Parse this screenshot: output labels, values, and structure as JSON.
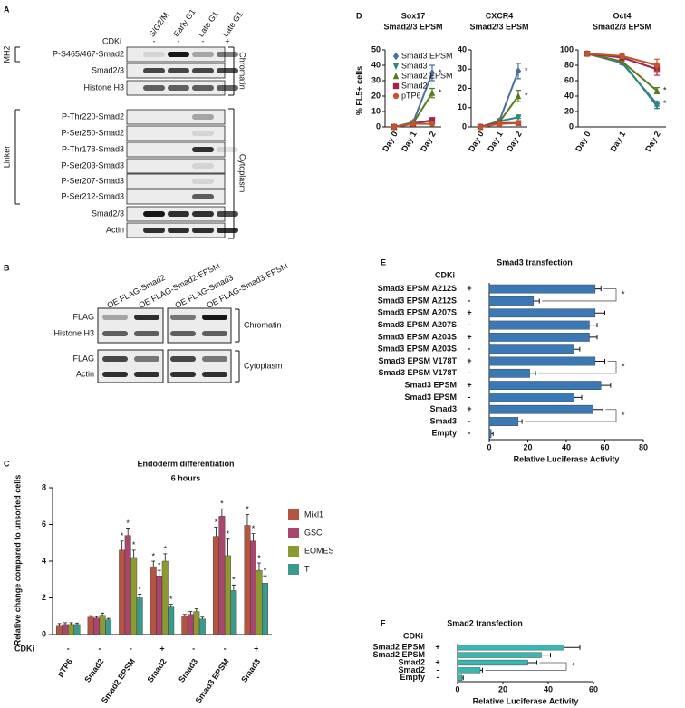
{
  "blot_a": {
    "panel": "A",
    "columns": [
      "S/G2/M",
      "Early G1",
      "Late G1",
      "Late G1"
    ],
    "cdki_label": "CDKi",
    "cdki": [
      "-",
      "-",
      "-",
      "+"
    ],
    "rows": [
      "P-S465/467-Smad2",
      "Smad2/3",
      "Histone H3",
      "P-Thr220-Smad2",
      "P-Ser250-Smad2",
      "P-Thr178-Smad3",
      "P-Ser203-Smad3",
      "P-Ser207-Smad3",
      "P-Ser212-Smad3",
      "Smad2/3",
      "Actin"
    ],
    "mh2_label": "MH2",
    "linker_label": "Linker",
    "chromatin_label": "Chromatin",
    "cytoplasm_label": "Cytoplasm"
  },
  "blot_b": {
    "panel": "B",
    "columns": [
      "OE FLAG-Smad2",
      "OE FLAG-Smad2-EPSM",
      "OE FLAG-Smad3",
      "OE FLAG-Smad3-EPSM"
    ],
    "rows": [
      "FLAG",
      "Histone H3",
      "FLAG",
      "Actin"
    ],
    "chromatin_label": "Chromatin",
    "cytoplasm_label": "Cytoplasm"
  },
  "chart_data": [
    {
      "panel": "C",
      "type": "grouped_bar",
      "title": "Endoderm differentiation",
      "subtitle": "6 hours",
      "ylabel": "Relative change compared to unsorted cells",
      "categories": [
        "pTP6",
        "Smad2",
        "Smad2 EPSM",
        "Smad2",
        "Smad3",
        "Smad3 EPSM",
        "Smad3"
      ],
      "cdki_label": "CDKi",
      "cdki": [
        "-",
        "-",
        "-",
        "+",
        "-",
        "-",
        "+"
      ],
      "ylim": [
        0,
        8
      ],
      "yticks": [
        0,
        2,
        4,
        6,
        8
      ],
      "significance_label": "*",
      "series": [
        {
          "name": "Mixl1",
          "color": "#b4553f",
          "values": [
            0.5,
            0.95,
            4.6,
            3.7,
            1.0,
            5.35,
            5.95
          ],
          "errors": [
            0.1,
            0.08,
            0.5,
            0.3,
            0.1,
            0.5,
            0.6
          ],
          "significant": [
            false,
            false,
            true,
            true,
            false,
            true,
            true
          ]
        },
        {
          "name": "GSC",
          "color": "#a8466f",
          "values": [
            0.55,
            0.9,
            5.4,
            3.2,
            1.1,
            6.45,
            5.1
          ],
          "errors": [
            0.1,
            0.08,
            0.4,
            0.3,
            0.15,
            0.4,
            0.4
          ],
          "significant": [
            false,
            false,
            true,
            true,
            false,
            true,
            true
          ]
        },
        {
          "name": "EOMES",
          "color": "#8c9a31",
          "values": [
            0.55,
            1.05,
            4.2,
            4.0,
            1.25,
            4.3,
            3.5
          ],
          "errors": [
            0.1,
            0.12,
            0.4,
            0.4,
            0.15,
            0.9,
            0.4
          ],
          "significant": [
            false,
            false,
            true,
            true,
            false,
            true,
            true
          ]
        },
        {
          "name": "T",
          "color": "#3b9a8c",
          "values": [
            0.55,
            0.8,
            2.0,
            1.5,
            0.85,
            2.4,
            2.8
          ],
          "errors": [
            0.08,
            0.08,
            0.2,
            0.15,
            0.1,
            0.3,
            0.4
          ],
          "significant": [
            false,
            false,
            true,
            true,
            false,
            true,
            true
          ]
        }
      ]
    },
    {
      "panel": "D",
      "type": "line",
      "title": "Sox17",
      "subtitle": "Smad2/3 EPSM",
      "ylabel": "% FL5+ cells",
      "legend": true,
      "significance_label": "*",
      "categories": [
        "Day 0",
        "Day 1",
        "Day 2"
      ],
      "ylim": [
        0,
        50
      ],
      "yticks": [
        0,
        10,
        20,
        30,
        40,
        50
      ],
      "series": [
        {
          "name": "Smad3 EPSM",
          "color": "#4a6f9f",
          "marker": "diamond",
          "values": [
            0,
            3,
            35
          ],
          "errors": [
            0,
            0.5,
            5
          ],
          "significant": [
            false,
            false,
            true
          ]
        },
        {
          "name": "Smad3",
          "color": "#2e8a7a",
          "marker": "triangle-down",
          "values": [
            0,
            2.5,
            4
          ],
          "errors": [
            0,
            0.4,
            0.8
          ],
          "significant": [
            false,
            false,
            false
          ]
        },
        {
          "name": "Smad2 EPSM",
          "color": "#5b7a1f",
          "marker": "triangle-up",
          "values": [
            0,
            2.5,
            22
          ],
          "errors": [
            0,
            0.4,
            3
          ],
          "significant": [
            false,
            false,
            true
          ]
        },
        {
          "name": "Smad2",
          "color": "#a3234e",
          "marker": "square",
          "values": [
            0,
            2,
            4.5
          ],
          "errors": [
            0,
            0.3,
            0.8
          ],
          "significant": [
            false,
            false,
            false
          ]
        },
        {
          "name": "pTP6",
          "color": "#c0552a",
          "marker": "circle",
          "values": [
            0,
            2,
            2
          ],
          "errors": [
            0,
            0.3,
            0.5
          ],
          "significant": [
            false,
            false,
            false
          ]
        }
      ]
    },
    {
      "type": "line",
      "title": "CXCR4",
      "subtitle": "Smad2/3 EPSM",
      "legend": false,
      "significance_label": "*",
      "categories": [
        "Day 0",
        "Day 1",
        "Day 2"
      ],
      "ylim": [
        0,
        40
      ],
      "yticks": [
        0,
        10,
        20,
        30,
        40
      ],
      "series": [
        {
          "color": "#4a6f9f",
          "marker": "diamond",
          "values": [
            0,
            3,
            29
          ],
          "errors": [
            0,
            0.5,
            4
          ],
          "significant": [
            false,
            false,
            true
          ]
        },
        {
          "color": "#2e8a7a",
          "marker": "triangle-down",
          "values": [
            0,
            3,
            5
          ],
          "errors": [
            0,
            0.4,
            0.6
          ],
          "significant": [
            false,
            false,
            false
          ]
        },
        {
          "color": "#5b7a1f",
          "marker": "triangle-up",
          "values": [
            0,
            2.5,
            16
          ],
          "errors": [
            0,
            0.4,
            3
          ],
          "significant": [
            false,
            false,
            true
          ]
        },
        {
          "color": "#a3234e",
          "marker": "square",
          "values": [
            0,
            2,
            2
          ],
          "errors": [
            0,
            0.3,
            0.4
          ],
          "significant": [
            false,
            false,
            false
          ]
        },
        {
          "color": "#c0552a",
          "marker": "circle",
          "values": [
            0,
            1.5,
            2
          ],
          "errors": [
            0,
            0.3,
            0.4
          ],
          "significant": [
            false,
            false,
            false
          ]
        }
      ]
    },
    {
      "type": "line",
      "title": "Oct4",
      "subtitle": "Smad2/3 EPSM",
      "legend": false,
      "significance_label": "*",
      "categories": [
        "Day 0",
        "Day 1",
        "Day 2"
      ],
      "ylim": [
        0,
        100
      ],
      "yticks": [
        0,
        20,
        40,
        60,
        80,
        100
      ],
      "series": [
        {
          "color": "#4a6f9f",
          "marker": "diamond",
          "values": [
            95,
            83,
            30
          ],
          "errors": [
            1,
            2,
            3
          ],
          "significant": [
            false,
            false,
            true
          ]
        },
        {
          "color": "#2e8a7a",
          "marker": "triangle-down",
          "values": [
            95,
            85,
            27
          ],
          "errors": [
            1,
            2,
            3
          ],
          "significant": [
            false,
            false,
            false
          ]
        },
        {
          "color": "#5b7a1f",
          "marker": "triangle-up",
          "values": [
            95,
            85,
            47
          ],
          "errors": [
            1,
            2,
            4
          ],
          "significant": [
            false,
            false,
            true
          ]
        },
        {
          "color": "#a3234e",
          "marker": "square",
          "values": [
            95,
            90,
            75
          ],
          "errors": [
            1,
            3,
            8
          ],
          "significant": [
            false,
            false,
            false
          ]
        },
        {
          "color": "#c0552a",
          "marker": "circle",
          "values": [
            95,
            92,
            80
          ],
          "errors": [
            1,
            3,
            8
          ],
          "significant": [
            false,
            false,
            false
          ]
        }
      ]
    },
    {
      "panel": "E",
      "type": "hbar",
      "title": "Smad3 transfection",
      "xlabel": "Relative Luciferase Activity",
      "cdki_label": "CDKi",
      "color": "#3b78b6",
      "significance_label": "*",
      "categories": [
        "Smad3 EPSM A212S",
        "Smad3 EPSM A212S",
        "Smad3 EPSM A207S",
        "Smad3 EPSM A207S",
        "Smad3 EPSM A203S",
        "Smad3 EPSM A203S",
        "Smad3 EPSM V178T",
        "Smad3 EPSM V178T",
        "Smad3 EPSM",
        "Smad3 EPSM",
        "Smad3",
        "Smad3",
        "Empty"
      ],
      "cdki": [
        "+",
        "-",
        "+",
        "-",
        "+",
        "-",
        "+",
        "-",
        "+",
        "-",
        "+",
        "-",
        "-"
      ],
      "values": [
        55,
        23,
        55,
        52,
        52,
        44,
        55,
        21,
        58,
        44,
        54,
        15,
        1
      ],
      "errors": [
        3,
        3,
        5,
        4,
        4,
        3,
        5,
        3,
        5,
        4,
        5,
        2,
        1
      ],
      "xlim": [
        0,
        80
      ],
      "xticks": [
        0,
        20,
        40,
        60,
        80
      ],
      "comparisons": [
        [
          0,
          1
        ],
        [
          6,
          7
        ],
        [
          10,
          11
        ]
      ]
    },
    {
      "panel": "F",
      "type": "hbar",
      "title": "Smad2 transfection",
      "xlabel": "Relative Luciferase Activity",
      "cdki_label": "CDKi",
      "color": "#3cb6b1",
      "significance_label": "*",
      "categories": [
        "Smad2 EPSM",
        "Smad2 EPSM",
        "Smad2",
        "Smad2",
        "Empty"
      ],
      "cdki": [
        "+",
        "-",
        "+",
        "-",
        "-"
      ],
      "values": [
        47,
        37,
        31,
        10,
        2
      ],
      "errors": [
        7,
        4,
        4,
        1,
        0.5
      ],
      "xlim": [
        0,
        60
      ],
      "xticks": [
        0,
        20,
        40,
        60
      ],
      "comparisons": [
        [
          2,
          3
        ]
      ]
    }
  ]
}
